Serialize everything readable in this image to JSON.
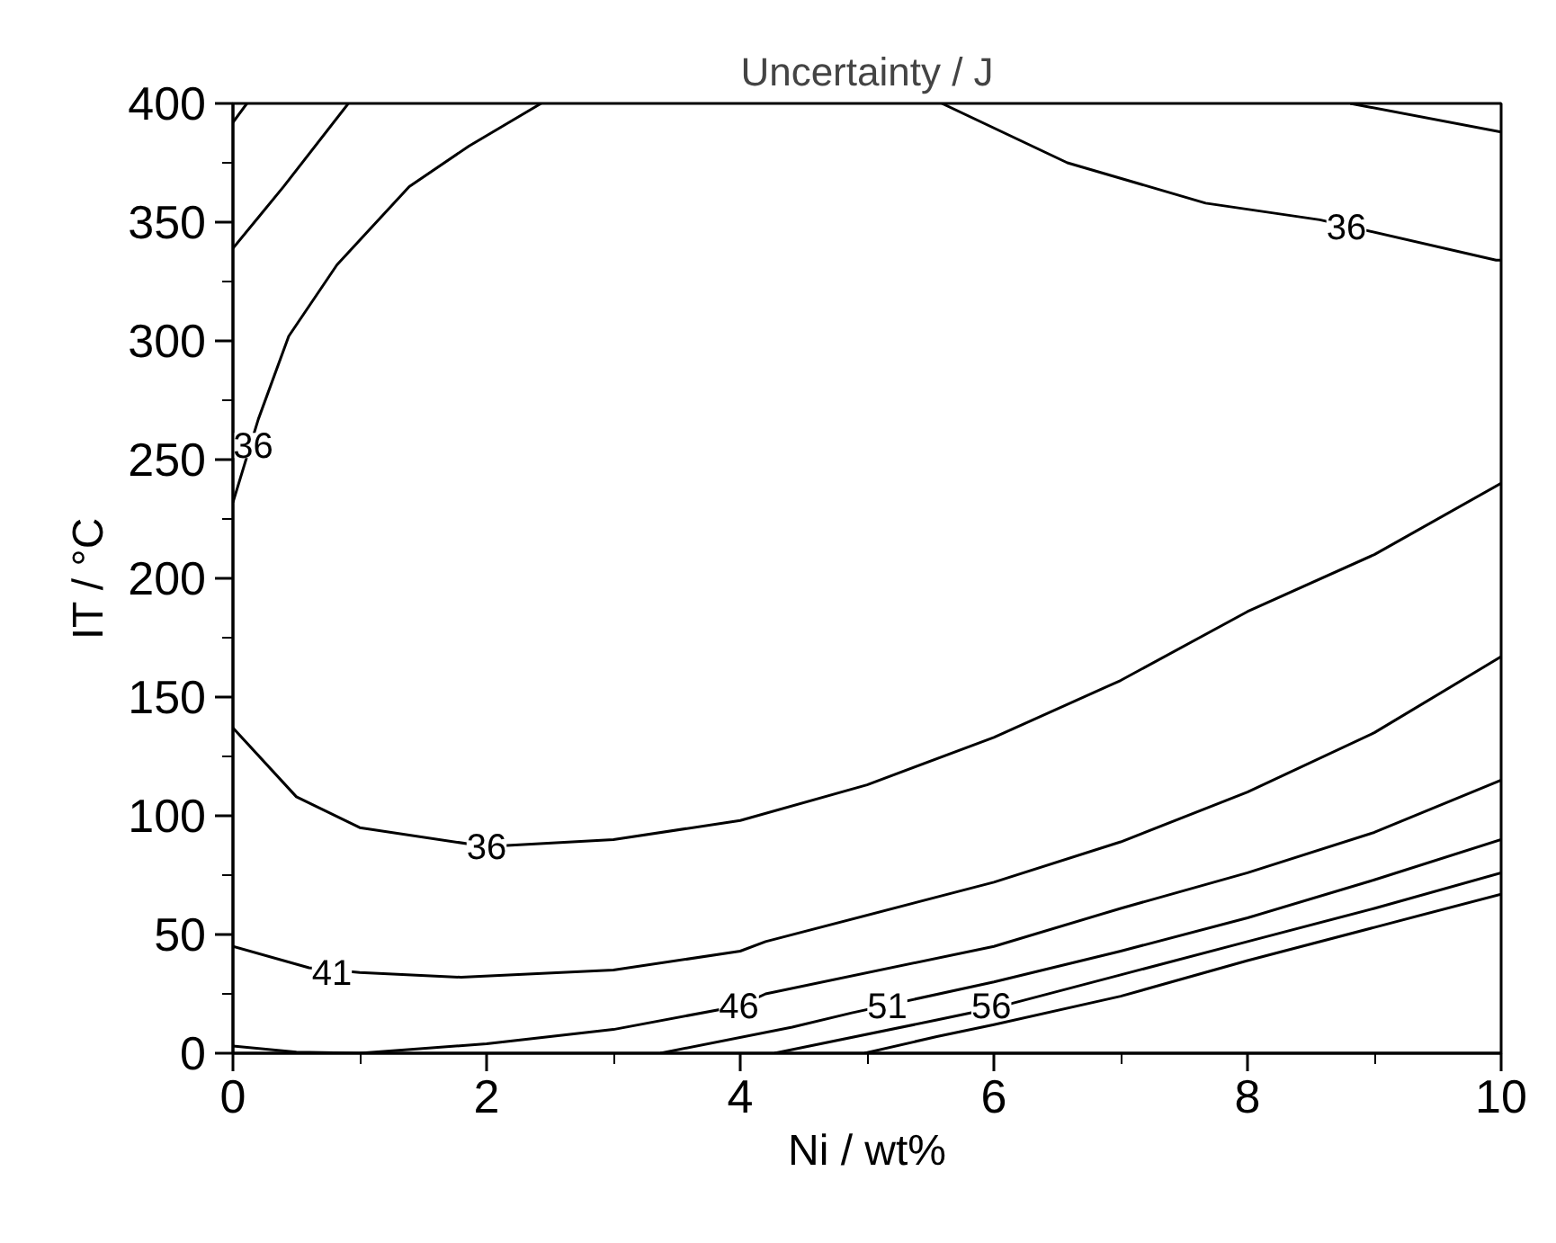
{
  "chart_data": {
    "type": "line",
    "title": "Uncertainty / J",
    "xlabel": "Ni / wt%",
    "ylabel": "IT / °C",
    "xlim": [
      0,
      10
    ],
    "ylim": [
      0,
      400
    ],
    "xticks": [
      0,
      {
        "value": 1,
        "label": null
      },
      2,
      {
        "value": 3,
        "label": null
      },
      4,
      {
        "value": 5,
        "label": null
      },
      6,
      {
        "value": 7,
        "label": null
      },
      8,
      {
        "value": 9,
        "label": null
      },
      10
    ],
    "yticks": [
      0,
      {
        "value": 25,
        "label": null
      },
      50,
      {
        "value": 75,
        "label": null
      },
      100,
      {
        "value": 125,
        "label": null
      },
      150,
      {
        "value": 175,
        "label": null
      },
      200,
      {
        "value": 225,
        "label": null
      },
      250,
      {
        "value": 275,
        "label": null
      },
      300,
      {
        "value": 325,
        "label": null
      },
      350,
      {
        "value": 375,
        "label": null
      },
      400
    ],
    "grid": false,
    "series": [
      {
        "color": "#000000",
        "x": [
          0,
          0.11
        ],
        "values": [
          392,
          400
        ]
      },
      {
        "color": "#000000",
        "x": [
          0,
          0.2,
          0.4,
          0.91
        ],
        "values": [
          339,
          352,
          365,
          400
        ]
      },
      {
        "color": "#000000",
        "x": [
          0,
          0.2,
          0.44,
          0.82,
          1.39,
          1.86,
          2.43
        ],
        "values": [
          232,
          267,
          302,
          332,
          365,
          382,
          400
        ]
      },
      {
        "color": "#000000",
        "x": [
          5.59,
          6.58,
          7.67,
          8.57,
          9.96,
          10
        ],
        "values": [
          400,
          375,
          358,
          351,
          334,
          334
        ]
      },
      {
        "color": "#000000",
        "x": [
          8.81,
          10
        ],
        "values": [
          400,
          388
        ]
      },
      {
        "color": "#000000",
        "x": [
          0,
          0.5,
          1,
          2,
          3,
          4,
          5,
          6,
          7,
          8,
          9,
          10
        ],
        "values": [
          137,
          108,
          95,
          87,
          90,
          98,
          113,
          133,
          157,
          186,
          210,
          240
        ]
      },
      {
        "color": "#000000",
        "x": [
          0,
          0.6,
          1,
          1.8,
          3,
          4,
          4.2,
          6,
          7,
          8,
          9,
          10
        ],
        "values": [
          45,
          36,
          34,
          32,
          35,
          43,
          47,
          72,
          89,
          110,
          135,
          167
        ]
      },
      {
        "color": "#000000",
        "x": [
          0,
          0.5,
          1,
          2,
          3,
          4,
          4.2,
          6,
          7,
          8,
          9,
          10
        ],
        "values": [
          3,
          0.5,
          0,
          4,
          10,
          20,
          25,
          45,
          61,
          76,
          93,
          115
        ]
      },
      {
        "color": "#000000",
        "x": [
          3.37,
          4.41,
          4.88,
          6,
          7,
          8,
          9,
          10
        ],
        "values": [
          0,
          11,
          17,
          30,
          43,
          57,
          73,
          90
        ]
      },
      {
        "color": "#000000",
        "x": [
          4.27,
          5.55,
          6,
          7,
          8,
          9,
          10
        ],
        "values": [
          0,
          14,
          19,
          33,
          47,
          61,
          76
        ]
      },
      {
        "color": "#000000",
        "x": [
          4.98,
          5.55,
          6,
          7,
          8,
          9,
          10
        ],
        "values": [
          0,
          7,
          12,
          24,
          39,
          53,
          67
        ]
      }
    ],
    "annotations": [
      {
        "text": "36",
        "x": 0.16,
        "y": 256
      },
      {
        "text": "36",
        "x": 8.78,
        "y": 348
      },
      {
        "text": "36",
        "x": 2.0,
        "y": 87
      },
      {
        "text": "41",
        "x": 0.78,
        "y": 34
      },
      {
        "text": "46",
        "x": 3.99,
        "y": 20
      },
      {
        "text": "51",
        "x": 5.16,
        "y": 20
      },
      {
        "text": "56",
        "x": 5.98,
        "y": 20
      }
    ]
  }
}
